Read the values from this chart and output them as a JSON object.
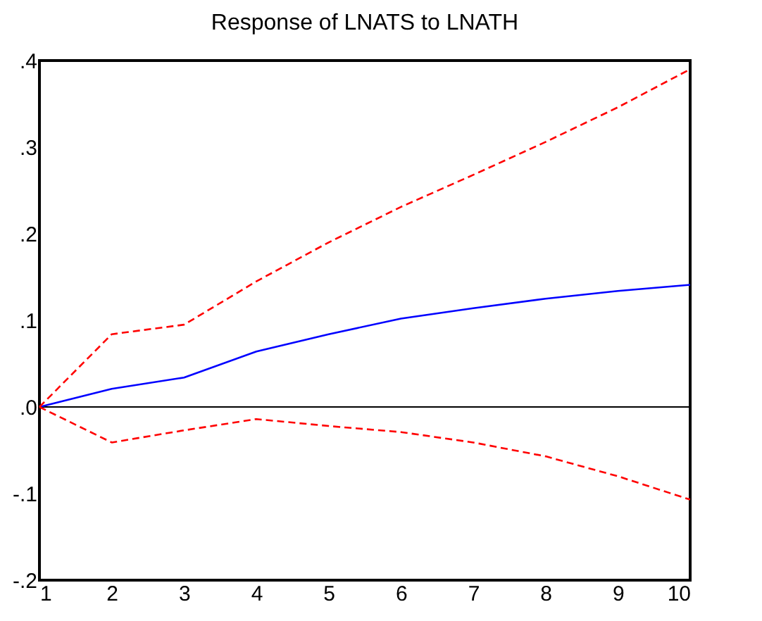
{
  "chart_data": {
    "type": "line",
    "title": "Response of LNATS to LNATH",
    "x": [
      1,
      2,
      3,
      4,
      5,
      6,
      7,
      8,
      9,
      10
    ],
    "series": [
      {
        "color": "#0000ff",
        "line_style": "solid",
        "values": [
          0,
          0.021,
          0.034,
          0.064,
          0.084,
          0.102,
          0.114,
          0.125,
          0.134,
          0.141
        ]
      },
      {
        "color": "#ff0000",
        "line_style": "dashed",
        "values": [
          0,
          0.084,
          0.095,
          0.145,
          0.19,
          0.231,
          0.268,
          0.306,
          0.346,
          0.39
        ]
      },
      {
        "color": "#ff0000",
        "line_style": "dashed",
        "values": [
          0,
          -0.041,
          -0.027,
          -0.014,
          -0.022,
          -0.029,
          -0.041,
          -0.057,
          -0.08,
          -0.107
        ]
      }
    ],
    "xlim": [
      1,
      10
    ],
    "xticks": [
      1,
      2,
      3,
      4,
      5,
      6,
      7,
      8,
      9,
      10
    ],
    "ylim": [
      -0.2,
      0.4
    ],
    "yticks": [
      {
        "value": -0.2,
        "label": "-.2"
      },
      {
        "value": -0.1,
        "label": "-.1"
      },
      {
        "value": 0,
        "label": ".0"
      },
      {
        "value": 0.1,
        "label": ".1"
      },
      {
        "value": 0.2,
        "label": ".2"
      },
      {
        "value": 0.3,
        "label": ".3"
      },
      {
        "value": 0.4,
        "label": ".4"
      }
    ],
    "ref_lines": [
      {
        "axis": "y",
        "value": 0,
        "color": "#000000",
        "line_style": "solid"
      }
    ],
    "grid": false,
    "marker": "none"
  }
}
